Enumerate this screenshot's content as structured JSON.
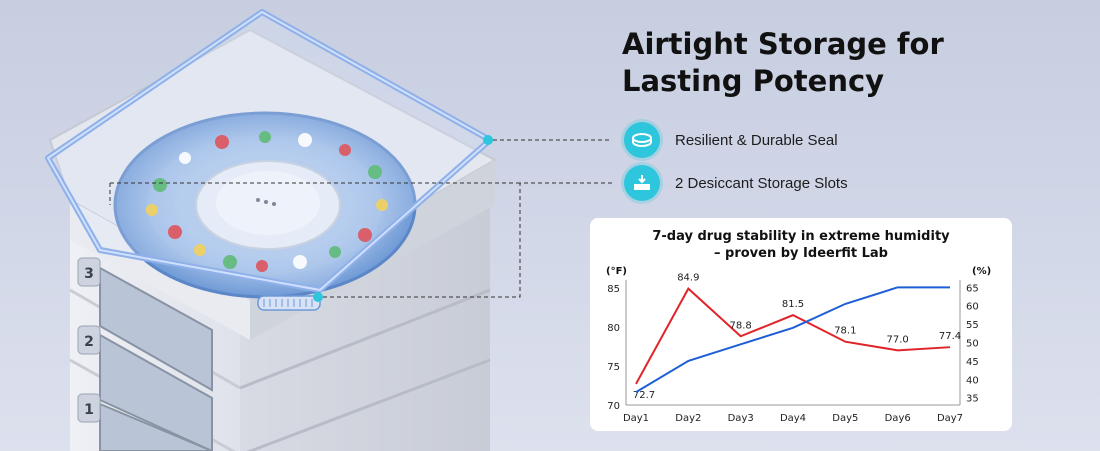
{
  "headline": {
    "line1": "Airtight Storage for",
    "line2": "Lasting Potency"
  },
  "features": [
    {
      "icon": "seal-ring-icon",
      "label": "Resilient & Durable Seal"
    },
    {
      "icon": "desiccant-tray-icon",
      "label": "2 Desiccant Storage Slots"
    }
  ],
  "tray_numbers": [
    "3",
    "2",
    "1"
  ],
  "colors": {
    "accent": "#2ec6dc",
    "temperature_line": "#e0242a",
    "humidity_line": "#1f5fd6"
  },
  "chart_data": {
    "type": "line",
    "title_line1": "7-day drug stability in extreme humidity",
    "title_line2": "– proven by Ideerfit Lab",
    "categories": [
      "Day1",
      "Day2",
      "Day3",
      "Day4",
      "Day5",
      "Day6",
      "Day7"
    ],
    "left_axis": {
      "unit": "(°F)",
      "ticks": [
        "70",
        "75",
        "80",
        "85"
      ],
      "range": [
        70,
        86
      ]
    },
    "right_axis": {
      "unit": "(%)",
      "ticks": [
        "35",
        "40",
        "45",
        "50",
        "55",
        "60",
        "65"
      ],
      "range": [
        33,
        67
      ]
    },
    "series": [
      {
        "axis": "left",
        "color": "#e0242a",
        "values": [
          72.7,
          84.9,
          78.8,
          81.5,
          78.1,
          77.0,
          77.4
        ],
        "labels": [
          "72.7",
          "84.9",
          "78.8",
          "81.5",
          "78.1",
          "77.0",
          "77.4"
        ]
      },
      {
        "axis": "right",
        "color": "#1f5fd6",
        "values": [
          36.5,
          45,
          49.5,
          54,
          60.5,
          65,
          65
        ]
      }
    ],
    "grid": false
  }
}
